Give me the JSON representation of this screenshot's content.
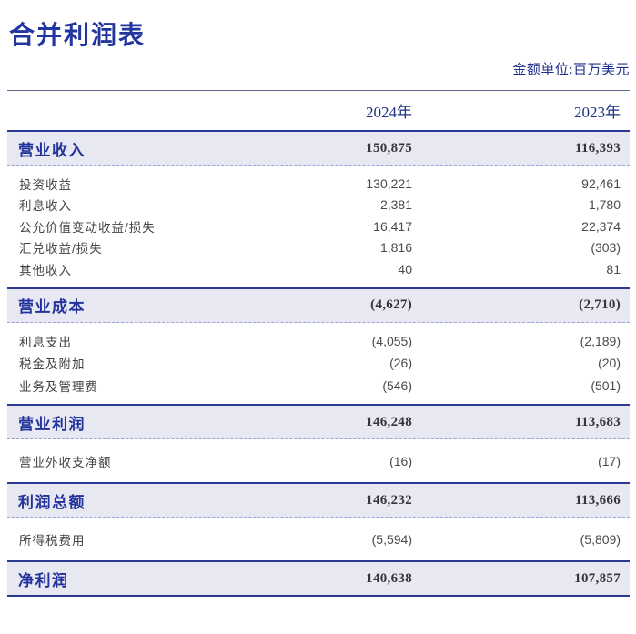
{
  "page": {
    "title": "合并利润表",
    "unit_note": "金额单位:百万美元"
  },
  "table": {
    "columns": [
      "2024年",
      "2023年"
    ],
    "rows": [
      {
        "label": "营业收入",
        "v2024": "150,875",
        "v2023": "116,393",
        "emphasis": true
      },
      {
        "label": "投资收益",
        "v2024": "130,221",
        "v2023": "92,461",
        "emphasis": false
      },
      {
        "label": "利息收入",
        "v2024": "2,381",
        "v2023": "1,780",
        "emphasis": false
      },
      {
        "label": "公允价值变动收益/损失",
        "v2024": "16,417",
        "v2023": "22,374",
        "emphasis": false
      },
      {
        "label": "汇兑收益/损失",
        "v2024": "1,816",
        "v2023": "(303)",
        "emphasis": false
      },
      {
        "label": "其他收入",
        "v2024": "40",
        "v2023": "81",
        "emphasis": false
      },
      {
        "label": "营业成本",
        "v2024": "(4,627)",
        "v2023": "(2,710)",
        "emphasis": true
      },
      {
        "label": "利息支出",
        "v2024": "(4,055)",
        "v2023": "(2,189)",
        "emphasis": false
      },
      {
        "label": "税金及附加",
        "v2024": "(26)",
        "v2023": "(20)",
        "emphasis": false
      },
      {
        "label": "业务及管理费",
        "v2024": "(546)",
        "v2023": "(501)",
        "emphasis": false
      },
      {
        "label": "营业利润",
        "v2024": "146,248",
        "v2023": "113,683",
        "emphasis": true
      },
      {
        "label": "营业外收支净额",
        "v2024": "(16)",
        "v2023": "(17)",
        "emphasis": false
      },
      {
        "label": "利润总额",
        "v2024": "146,232",
        "v2023": "113,666",
        "emphasis": true
      },
      {
        "label": "所得税费用",
        "v2024": "(5,594)",
        "v2023": "(5,809)",
        "emphasis": false
      },
      {
        "label": "净利润",
        "v2024": "140,638",
        "v2023": "107,857",
        "emphasis": true
      }
    ]
  },
  "colors": {
    "accent_navy": "#2236a0",
    "header_navy": "#1e3383",
    "section_border_navy": "#2b3a90",
    "row_highlight_bg": "#e8e8f3",
    "dashed_divider": "#9aa4d4",
    "value_dark": "#35353c",
    "detail_text": "#434343"
  }
}
